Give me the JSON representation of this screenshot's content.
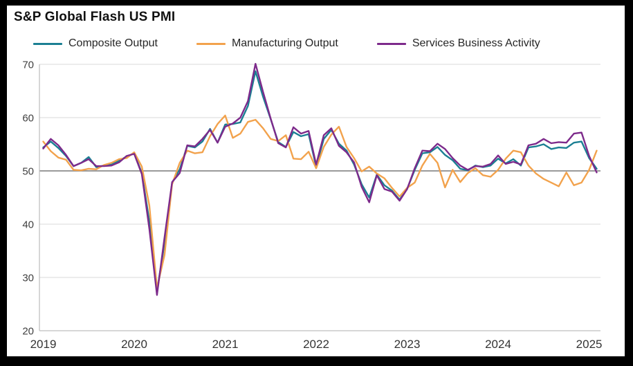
{
  "header": {
    "title": "S&P Global Flash US PMI"
  },
  "chart_data": {
    "type": "line",
    "title": "S&P Global Flash US PMI",
    "frequency": "monthly",
    "x_start": "2019-01",
    "x_end": "2025-02",
    "x_tick_labels": [
      "2019",
      "2020",
      "2021",
      "2022",
      "2023",
      "2024",
      "2025"
    ],
    "y_ticks": [
      20,
      30,
      40,
      50,
      60,
      70
    ],
    "ylim": [
      20,
      70
    ],
    "reference_line_y": 50,
    "grid": "horizontal",
    "legend_position": "top",
    "palette": {
      "gridline": "#d9d9d9",
      "reference_line": "#8c8c8c",
      "axis": "#bfbfbf",
      "tick_text": "#404040",
      "frame": "#000000",
      "background": "#ffffff"
    },
    "series": [
      {
        "name": "Composite Output",
        "color": "#1b7f93",
        "values": [
          54.4,
          55.5,
          54.3,
          52.8,
          50.9,
          51.5,
          52.6,
          50.7,
          51.0,
          51.2,
          51.9,
          52.7,
          53.3,
          49.6,
          40.5,
          27.4,
          36.4,
          47.8,
          50.3,
          54.7,
          54.4,
          55.5,
          57.9,
          55.3,
          58.7,
          58.8,
          59.1,
          62.2,
          68.7,
          63.9,
          59.7,
          55.4,
          54.5,
          57.3,
          56.5,
          56.9,
          50.8,
          56.0,
          57.7,
          55.1,
          53.8,
          51.2,
          47.5,
          45.0,
          49.3,
          47.3,
          46.3,
          44.6,
          46.6,
          50.2,
          53.3,
          53.5,
          54.5,
          53.0,
          52.0,
          50.4,
          50.1,
          51.0,
          50.7,
          51.0,
          52.3,
          51.4,
          52.2,
          51.0,
          54.4,
          54.6,
          55.0,
          54.1,
          54.4,
          54.3,
          55.3,
          55.5,
          52.4,
          50.4
        ]
      },
      {
        "name": "Manufacturing Output",
        "color": "#f2a24c",
        "values": [
          55.5,
          53.7,
          52.5,
          52.1,
          50.2,
          50.1,
          50.4,
          50.3,
          51.1,
          51.5,
          52.2,
          52.4,
          53.5,
          50.8,
          43.5,
          28.0,
          34.2,
          47.5,
          51.5,
          53.8,
          53.3,
          53.5,
          56.5,
          58.8,
          60.4,
          56.2,
          57.0,
          59.2,
          59.6,
          58.0,
          56.0,
          55.6,
          56.7,
          52.3,
          52.2,
          53.6,
          50.5,
          54.5,
          56.8,
          58.3,
          54.5,
          52.4,
          49.9,
          50.8,
          49.5,
          48.6,
          46.8,
          45.2,
          46.8,
          47.8,
          51.0,
          53.2,
          51.5,
          46.9,
          50.2,
          47.9,
          49.6,
          50.5,
          49.2,
          48.9,
          50.2,
          52.3,
          53.8,
          53.5,
          51.0,
          49.5,
          48.5,
          47.8,
          47.1,
          49.7,
          47.3,
          47.8,
          50.2,
          53.8
        ]
      },
      {
        "name": "Services Business Activity",
        "color": "#7d2a8b",
        "values": [
          54.2,
          56.0,
          54.8,
          53.0,
          50.9,
          51.5,
          52.2,
          50.9,
          50.9,
          51.0,
          51.6,
          52.8,
          53.2,
          49.4,
          39.1,
          26.7,
          37.5,
          47.9,
          49.6,
          54.8,
          54.6,
          56.0,
          57.7,
          55.3,
          58.3,
          58.9,
          60.0,
          63.1,
          70.1,
          64.8,
          59.8,
          55.2,
          54.4,
          58.2,
          57.0,
          57.5,
          51.2,
          56.7,
          58.0,
          54.7,
          53.5,
          51.6,
          47.0,
          44.1,
          49.2,
          46.6,
          46.1,
          44.4,
          46.6,
          50.5,
          53.8,
          53.7,
          55.1,
          54.1,
          52.4,
          51.0,
          50.2,
          50.9,
          50.8,
          51.3,
          52.9,
          51.3,
          51.7,
          51.2,
          54.8,
          55.1,
          56.0,
          55.2,
          55.4,
          55.3,
          57.0,
          57.2,
          52.8,
          49.7
        ]
      }
    ]
  }
}
